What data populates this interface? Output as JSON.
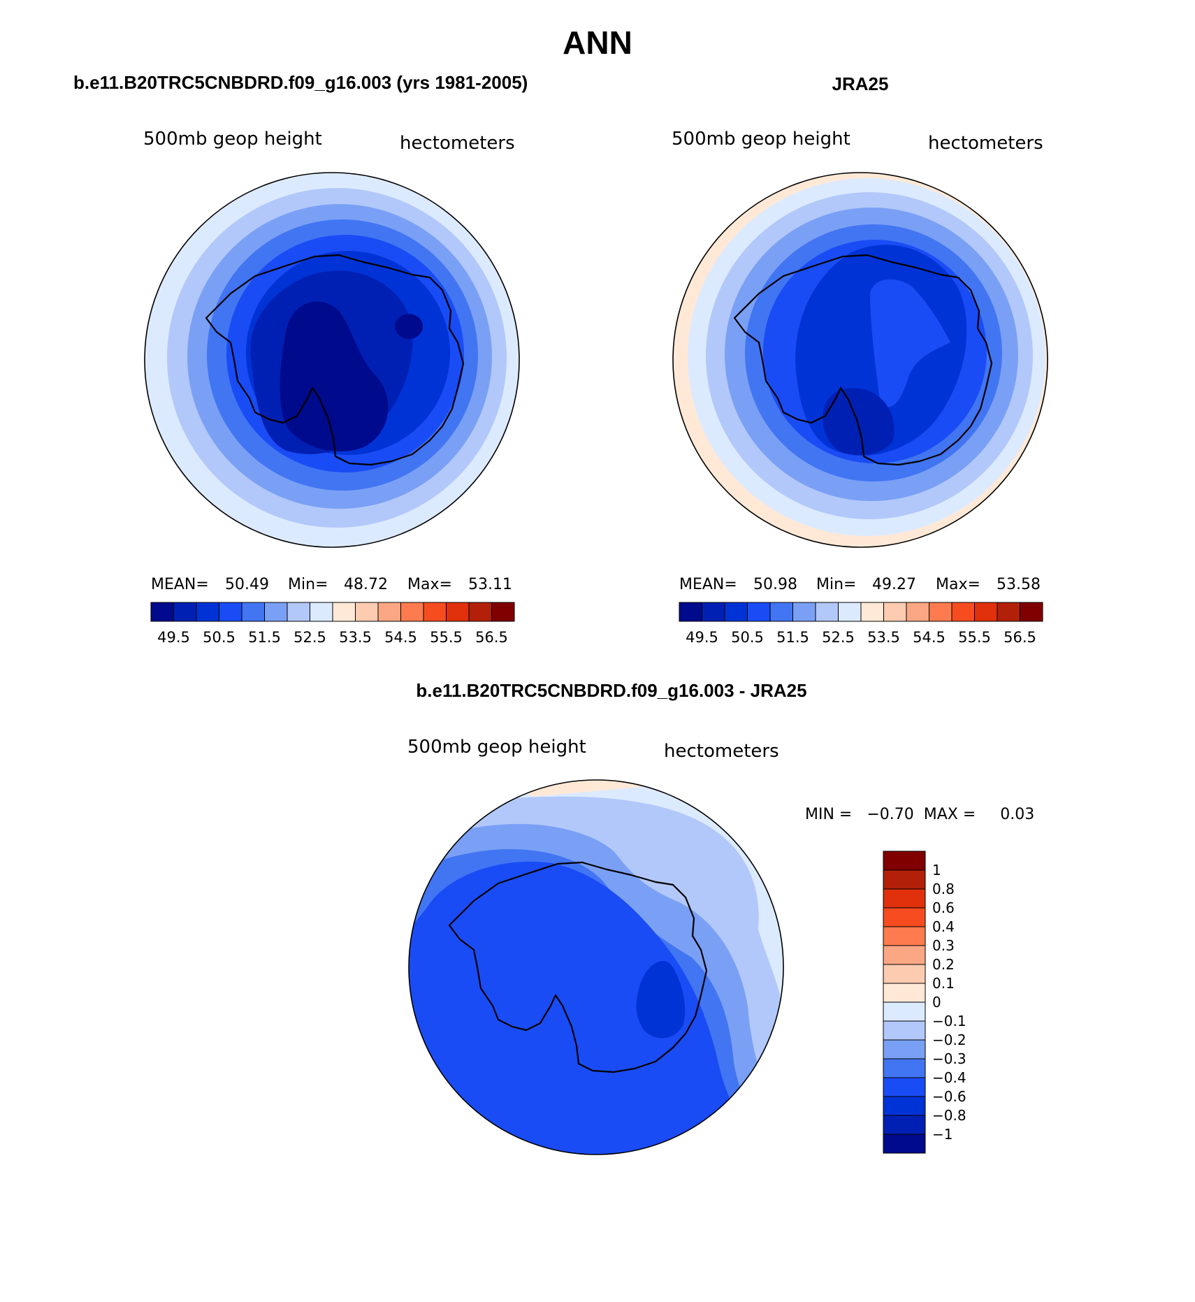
{
  "figure": {
    "title": "ANN",
    "color_scale": [
      "#000a8c",
      "#0020b4",
      "#0033d6",
      "#1a4cf5",
      "#4275f2",
      "#7aa0f5",
      "#b2c8fa",
      "#dceaff",
      "#ffe9d6",
      "#fdcbb0",
      "#fca784",
      "#fd7b4e",
      "#f74c20",
      "#e0300c",
      "#b3200a",
      "#800000"
    ]
  },
  "chart_data": [
    {
      "type": "heatmap",
      "title": "b.e11.B20TRC5CNBDRD.f09_g16.003 (yrs 1981-2005)",
      "variable": "500mb geop height",
      "units": "hectometers",
      "stats": {
        "mean_label": "MEAN=",
        "mean": "50.49",
        "min_label": "Min=",
        "min": "48.72",
        "max_label": "Max=",
        "max": "53.11"
      },
      "colorbar": {
        "orientation": "horizontal",
        "tick_labels": [
          "49.5",
          "50.5",
          "51.5",
          "52.5",
          "53.5",
          "54.5",
          "55.5",
          "56.5"
        ]
      },
      "projection": "south polar stereographic"
    },
    {
      "type": "heatmap",
      "title": "JRA25",
      "variable": "500mb geop height",
      "units": "hectometers",
      "stats": {
        "mean_label": "MEAN=",
        "mean": "50.98",
        "min_label": "Min=",
        "min": "49.27",
        "max_label": "Max=",
        "max": "53.58"
      },
      "colorbar": {
        "orientation": "horizontal",
        "tick_labels": [
          "49.5",
          "50.5",
          "51.5",
          "52.5",
          "53.5",
          "54.5",
          "55.5",
          "56.5"
        ]
      },
      "projection": "south polar stereographic"
    },
    {
      "type": "heatmap",
      "title": "b.e11.B20TRC5CNBDRD.f09_g16.003 - JRA25",
      "variable": "500mb geop height",
      "units": "hectometers",
      "stats_text": "MIN =   −0.70  MAX =     0.03",
      "colorbar": {
        "orientation": "vertical",
        "tick_labels": [
          "1",
          "0.8",
          "0.6",
          "0.4",
          "0.3",
          "0.2",
          "0.1",
          "0",
          "−0.1",
          "−0.2",
          "−0.3",
          "−0.4",
          "−0.6",
          "−0.8",
          "−1"
        ]
      },
      "projection": "south polar stereographic"
    }
  ]
}
